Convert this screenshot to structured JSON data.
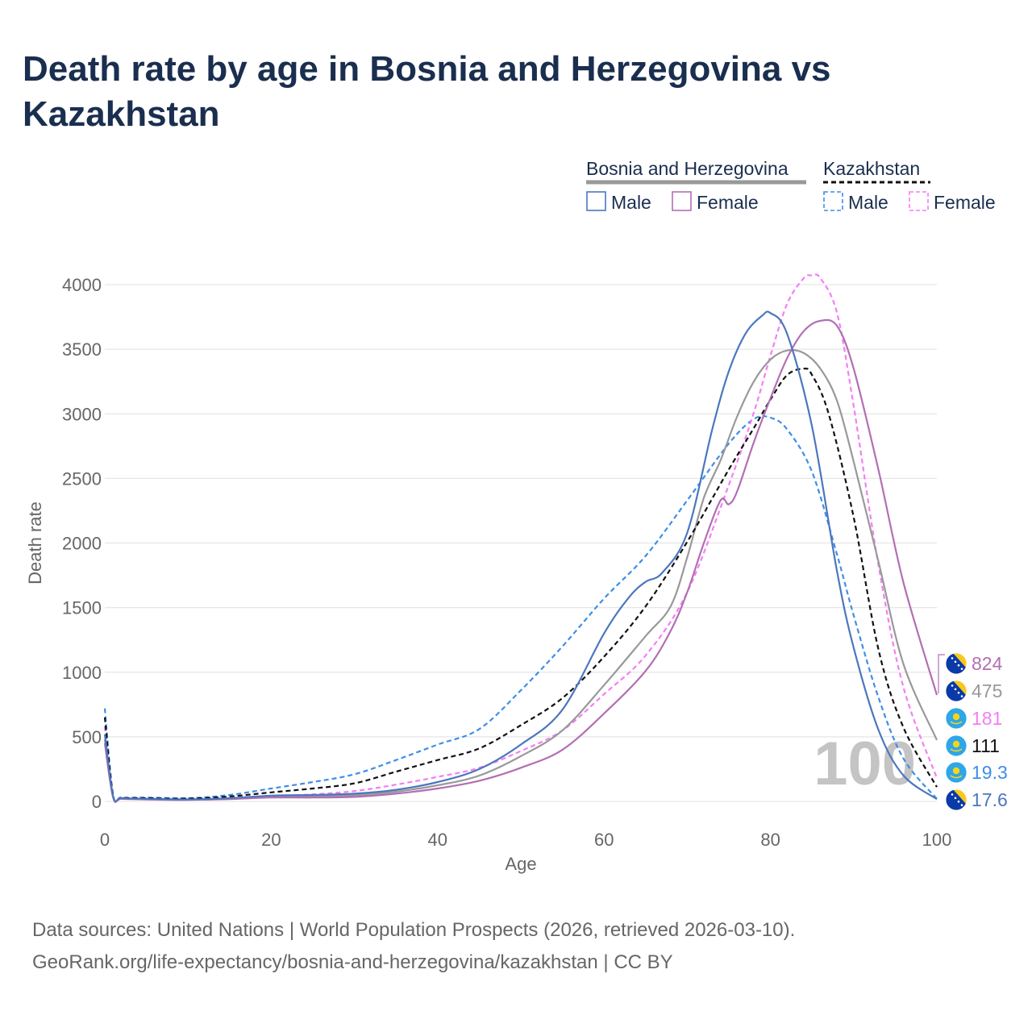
{
  "title": "Death rate by age in Bosnia and Herzegovina vs Kazakhstan",
  "footer": {
    "sources": "Data sources: United Nations | World Population Prospects (2026, retrieved 2026-03-10).",
    "credit": "GeoRank.org/life-expectancy/bosnia-and-herzegovina/kazakhstan | CC BY"
  },
  "legend": {
    "groups": [
      {
        "name": "Bosnia and Herzegovina",
        "entries": [
          "Male",
          "Female"
        ],
        "line_color": "#999999",
        "dashed": false
      },
      {
        "name": "Kazakhstan",
        "entries": [
          "Male",
          "Female"
        ],
        "line_color": "#111111",
        "dashed": true
      }
    ]
  },
  "watermark_age": "100",
  "colors": {
    "bih_male": "#4b77be",
    "bih_female": "#b26fb2",
    "bih_both": "#999999",
    "kaz_male": "#3f8ee8",
    "kaz_female": "#f47ef4",
    "kaz_both": "#111111"
  },
  "chart_data": {
    "type": "line",
    "title": "Death rate by age in Bosnia and Herzegovina vs Kazakhstan",
    "xlabel": "Age",
    "ylabel": "Death rate",
    "xlim": [
      0,
      100
    ],
    "ylim": [
      0,
      4000
    ],
    "xticks": [
      0,
      20,
      40,
      60,
      80,
      100
    ],
    "yticks": [
      0,
      500,
      1000,
      1500,
      2000,
      2500,
      3000,
      3500,
      4000
    ],
    "grid": true,
    "series": [
      {
        "key": "kaz_male",
        "name": "Kazakhstan Male",
        "country": "Kazakhstan",
        "sex": "Male",
        "color": "#3f8ee8",
        "dashed": true,
        "x": [
          0,
          1,
          2,
          5,
          10,
          15,
          20,
          25,
          30,
          35,
          40,
          45,
          50,
          55,
          60,
          65,
          70,
          75,
          78,
          80,
          82,
          85,
          88,
          90,
          93,
          96,
          100
        ],
        "y": [
          720,
          50,
          30,
          30,
          25,
          50,
          100,
          150,
          210,
          320,
          440,
          560,
          860,
          1200,
          1570,
          1900,
          2330,
          2770,
          2960,
          2970,
          2880,
          2550,
          1910,
          1440,
          800,
          330,
          19.3
        ]
      },
      {
        "key": "kaz_female",
        "name": "Kazakhstan Female",
        "country": "Kazakhstan",
        "sex": "Female",
        "color": "#f47ef4",
        "dashed": true,
        "x": [
          0,
          1,
          2,
          5,
          10,
          15,
          20,
          25,
          30,
          35,
          40,
          45,
          50,
          55,
          60,
          65,
          70,
          75,
          78,
          80,
          82,
          84,
          85,
          86,
          88,
          90,
          93,
          96,
          100
        ],
        "y": [
          580,
          40,
          25,
          20,
          18,
          25,
          40,
          55,
          80,
          130,
          190,
          260,
          390,
          550,
          830,
          1130,
          1620,
          2450,
          3010,
          3450,
          3850,
          4050,
          4070,
          4050,
          3780,
          3060,
          1820,
          880,
          181
        ]
      },
      {
        "key": "kaz_both",
        "name": "Kazakhstan",
        "country": "Kazakhstan",
        "sex": "Both",
        "color": "#111111",
        "dashed": true,
        "x": [
          0,
          1,
          2,
          5,
          10,
          15,
          20,
          25,
          30,
          35,
          40,
          45,
          50,
          55,
          60,
          65,
          70,
          75,
          78,
          80,
          82,
          84,
          85,
          87,
          90,
          93,
          96,
          100
        ],
        "y": [
          650,
          45,
          28,
          25,
          22,
          38,
          70,
          100,
          140,
          230,
          320,
          410,
          590,
          800,
          1120,
          1510,
          2010,
          2570,
          2890,
          3110,
          3300,
          3350,
          3300,
          3000,
          2200,
          1170,
          570,
          111
        ]
      },
      {
        "key": "bih_male",
        "name": "Bosnia and Herzegovina Male",
        "country": "Bosnia and Herzegovina",
        "sex": "Male",
        "color": "#4b77be",
        "dashed": false,
        "x": [
          0,
          1,
          2,
          5,
          10,
          15,
          20,
          25,
          30,
          35,
          40,
          45,
          50,
          55,
          60,
          63,
          65,
          67,
          70,
          73,
          75,
          77,
          79,
          80,
          82,
          85,
          88,
          90,
          93,
          96,
          100
        ],
        "y": [
          520,
          40,
          25,
          20,
          15,
          25,
          45,
          50,
          60,
          90,
          150,
          250,
          440,
          710,
          1300,
          1580,
          1700,
          1770,
          2080,
          2880,
          3330,
          3620,
          3760,
          3780,
          3620,
          2900,
          1780,
          1190,
          550,
          200,
          17.6
        ]
      },
      {
        "key": "bih_female",
        "name": "Bosnia and Herzegovina Female",
        "country": "Bosnia and Herzegovina",
        "sex": "Female",
        "color": "#b26fb2",
        "dashed": false,
        "x": [
          0,
          1,
          2,
          5,
          10,
          15,
          20,
          25,
          30,
          35,
          40,
          45,
          50,
          55,
          60,
          65,
          68,
          70,
          72,
          74,
          75,
          76,
          78,
          80,
          82,
          84,
          86,
          88,
          90,
          93,
          96,
          100
        ],
        "y": [
          450,
          30,
          20,
          15,
          12,
          18,
          30,
          30,
          35,
          60,
          100,
          160,
          260,
          400,
          680,
          1010,
          1320,
          1620,
          2000,
          2330,
          2300,
          2400,
          2780,
          3120,
          3430,
          3640,
          3720,
          3680,
          3350,
          2560,
          1690,
          824
        ]
      },
      {
        "key": "bih_both",
        "name": "Bosnia and Herzegovina",
        "country": "Bosnia and Herzegovina",
        "sex": "Both",
        "color": "#999999",
        "dashed": false,
        "x": [
          0,
          1,
          2,
          5,
          10,
          15,
          20,
          25,
          30,
          35,
          40,
          45,
          50,
          55,
          60,
          65,
          68,
          70,
          72,
          74,
          76,
          78,
          80,
          82,
          84,
          86,
          88,
          90,
          93,
          96,
          100
        ],
        "y": [
          480,
          35,
          22,
          18,
          14,
          22,
          38,
          40,
          48,
          75,
          125,
          200,
          350,
          550,
          900,
          1280,
          1510,
          1890,
          2350,
          2640,
          2980,
          3250,
          3420,
          3490,
          3470,
          3350,
          3100,
          2630,
          1850,
          1060,
          475
        ]
      }
    ],
    "end_labels": [
      {
        "series": "bih_female",
        "value": "824",
        "color": "#b26fb2",
        "flag": "bih"
      },
      {
        "series": "bih_both",
        "value": "475",
        "color": "#999999",
        "flag": "bih"
      },
      {
        "series": "kaz_female",
        "value": "181",
        "color": "#f47ef4",
        "flag": "kaz"
      },
      {
        "series": "kaz_both",
        "value": "111",
        "color": "#111111",
        "flag": "kaz"
      },
      {
        "series": "kaz_male",
        "value": "19.3",
        "color": "#3f8ee8",
        "flag": "kaz"
      },
      {
        "series": "bih_male",
        "value": "17.6",
        "color": "#4b77be",
        "flag": "bih"
      }
    ]
  }
}
